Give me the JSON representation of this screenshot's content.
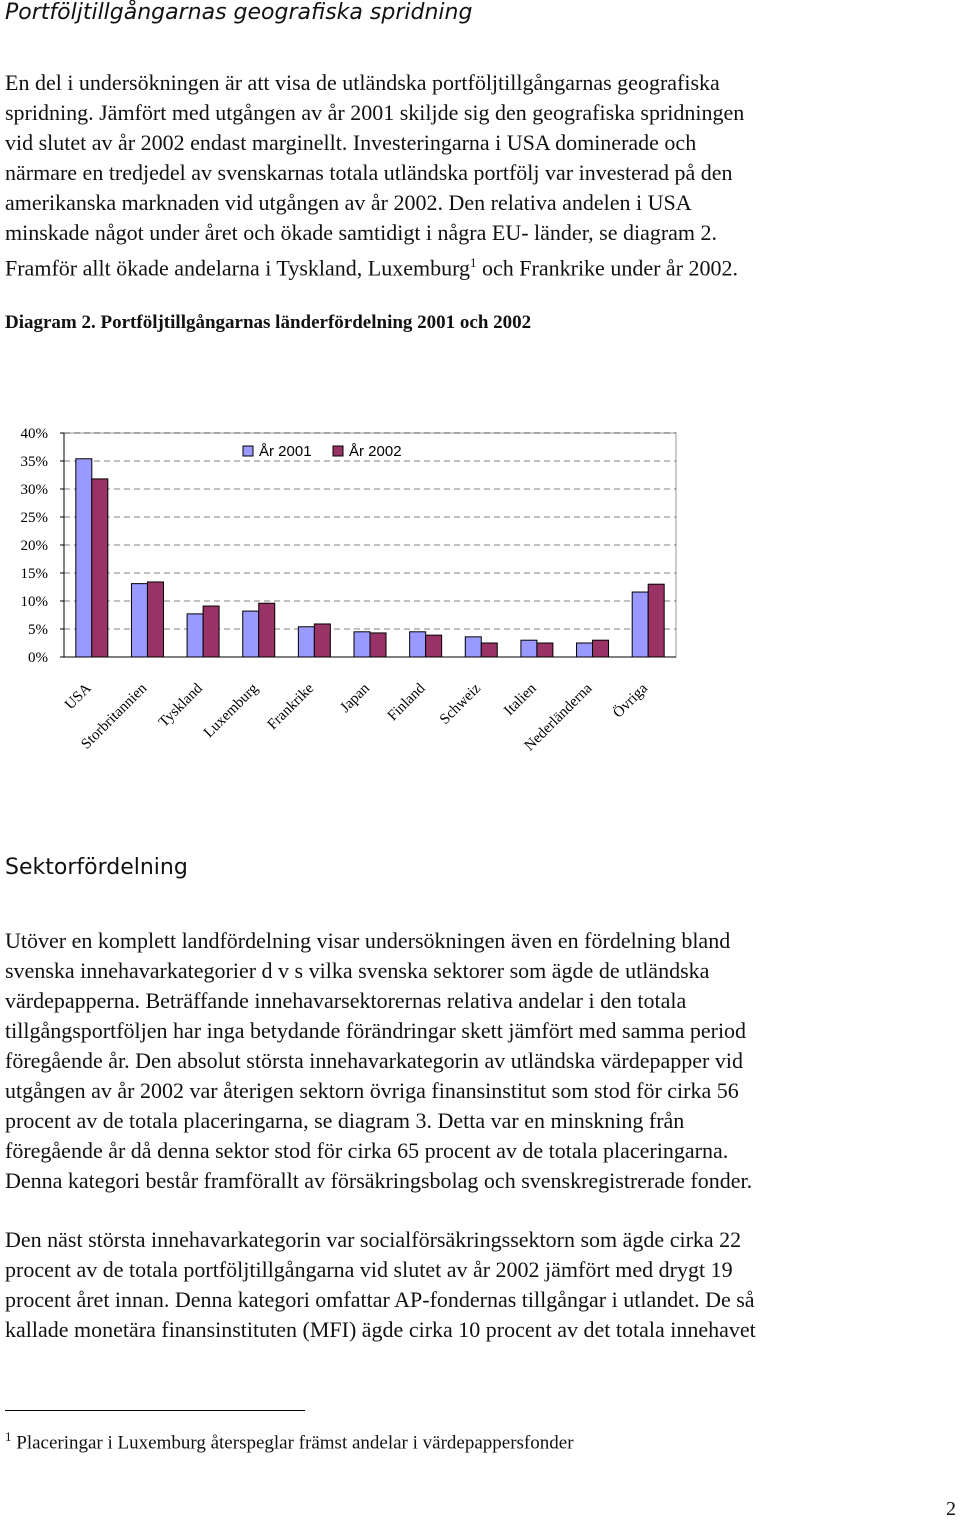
{
  "heading": "Portföljtillgångarnas geografiska spridning",
  "intro": {
    "lines": [
      "En del i undersökningen är att visa de utländska portföljtillgångarnas geografiska",
      "spridning. Jämfört med utgången av år 2001 skiljde sig den geografiska spridningen",
      "vid slutet av år 2002 endast marginellt. Investeringarna i USA dominerade och",
      "närmare en tredjedel av svenskarnas totala utländska portfölj var investerad på den",
      "amerikanska marknaden vid utgången av år 2002. Den relativa andelen i USA",
      "minskade något under året och ökade samtidigt i några EU- länder, se diagram 2."
    ],
    "last_line": {
      "before": "Framför allt ökade andelarna i Tyskland, Luxemburg",
      "footnote_ref": "1",
      "after": " och Frankrike under år 2002."
    }
  },
  "diagram_caption": "Diagram 2. Portföljtillgångarnas länderfördelning 2001 och 2002",
  "chart_data": {
    "type": "bar",
    "categories": [
      "USA",
      "Storbritannien",
      "Tyskland",
      "Luxemburg",
      "Frankrike",
      "Japan",
      "Finland",
      "Schweiz",
      "Italien",
      "Nederländerna",
      "Övriga"
    ],
    "series": [
      {
        "name": "År 2001",
        "color": "#9999ff",
        "values": [
          35.4,
          13.1,
          7.7,
          8.2,
          5.4,
          4.5,
          4.5,
          3.6,
          3.0,
          2.5,
          11.6
        ]
      },
      {
        "name": "År 2002",
        "color": "#993366",
        "values": [
          31.8,
          13.4,
          9.1,
          9.6,
          5.9,
          4.3,
          3.9,
          2.5,
          2.5,
          3.0,
          13.0
        ]
      }
    ],
    "ylim": [
      0,
      40
    ],
    "yticks": [
      {
        "value": 0,
        "label": "0%"
      },
      {
        "value": 5,
        "label": "5%"
      },
      {
        "value": 10,
        "label": "10%"
      },
      {
        "value": 15,
        "label": "15%"
      },
      {
        "value": 20,
        "label": "20%"
      },
      {
        "value": 25,
        "label": "25%"
      },
      {
        "value": 30,
        "label": "30%"
      },
      {
        "value": 35,
        "label": "35%"
      },
      {
        "value": 40,
        "label": "40%"
      }
    ],
    "grid": true,
    "legend": "top"
  },
  "heading2": "Sektorfördelning",
  "paragraph2": [
    "Utöver en komplett landfördelning visar undersökningen även en fördelning bland",
    "svenska innehavarkategorier d v s vilka svenska sektorer som ägde de utländska",
    "värdepapperna. Beträffande innehavarsektorernas relativa andelar i den totala",
    "tillgångsportföljen har inga betydande förändringar skett jämfört med samma period",
    "föregående år. Den absolut största innehavarkategorin av utländska värdepapper vid",
    "utgången av år 2002 var återigen sektorn övriga finansinstitut som stod för cirka 56",
    "procent av de totala placeringarna, se diagram 3. Detta var en minskning från",
    "föregående år då denna sektor stod för cirka 65 procent av de totala placeringarna.",
    "Denna kategori består framförallt av försäkringsbolag och svenskregistrerade fonder."
  ],
  "paragraph3": [
    "Den näst största innehavarkategorin var socialförsäkringssektorn som ägde cirka 22",
    "procent av de totala portföljtillgångarna vid slutet av år 2002 jämfört med drygt 19",
    "procent året innan. Denna kategori omfattar AP-fondernas tillgångar i utlandet. De så",
    "kallade monetära finansinstituten (MFI) ägde cirka 10 procent av det totala innehavet"
  ],
  "footnote": {
    "marker": "1",
    "text": " Placeringar i Luxemburg återspeglar främst andelar i värdepappersfonder"
  },
  "page_number": "2"
}
